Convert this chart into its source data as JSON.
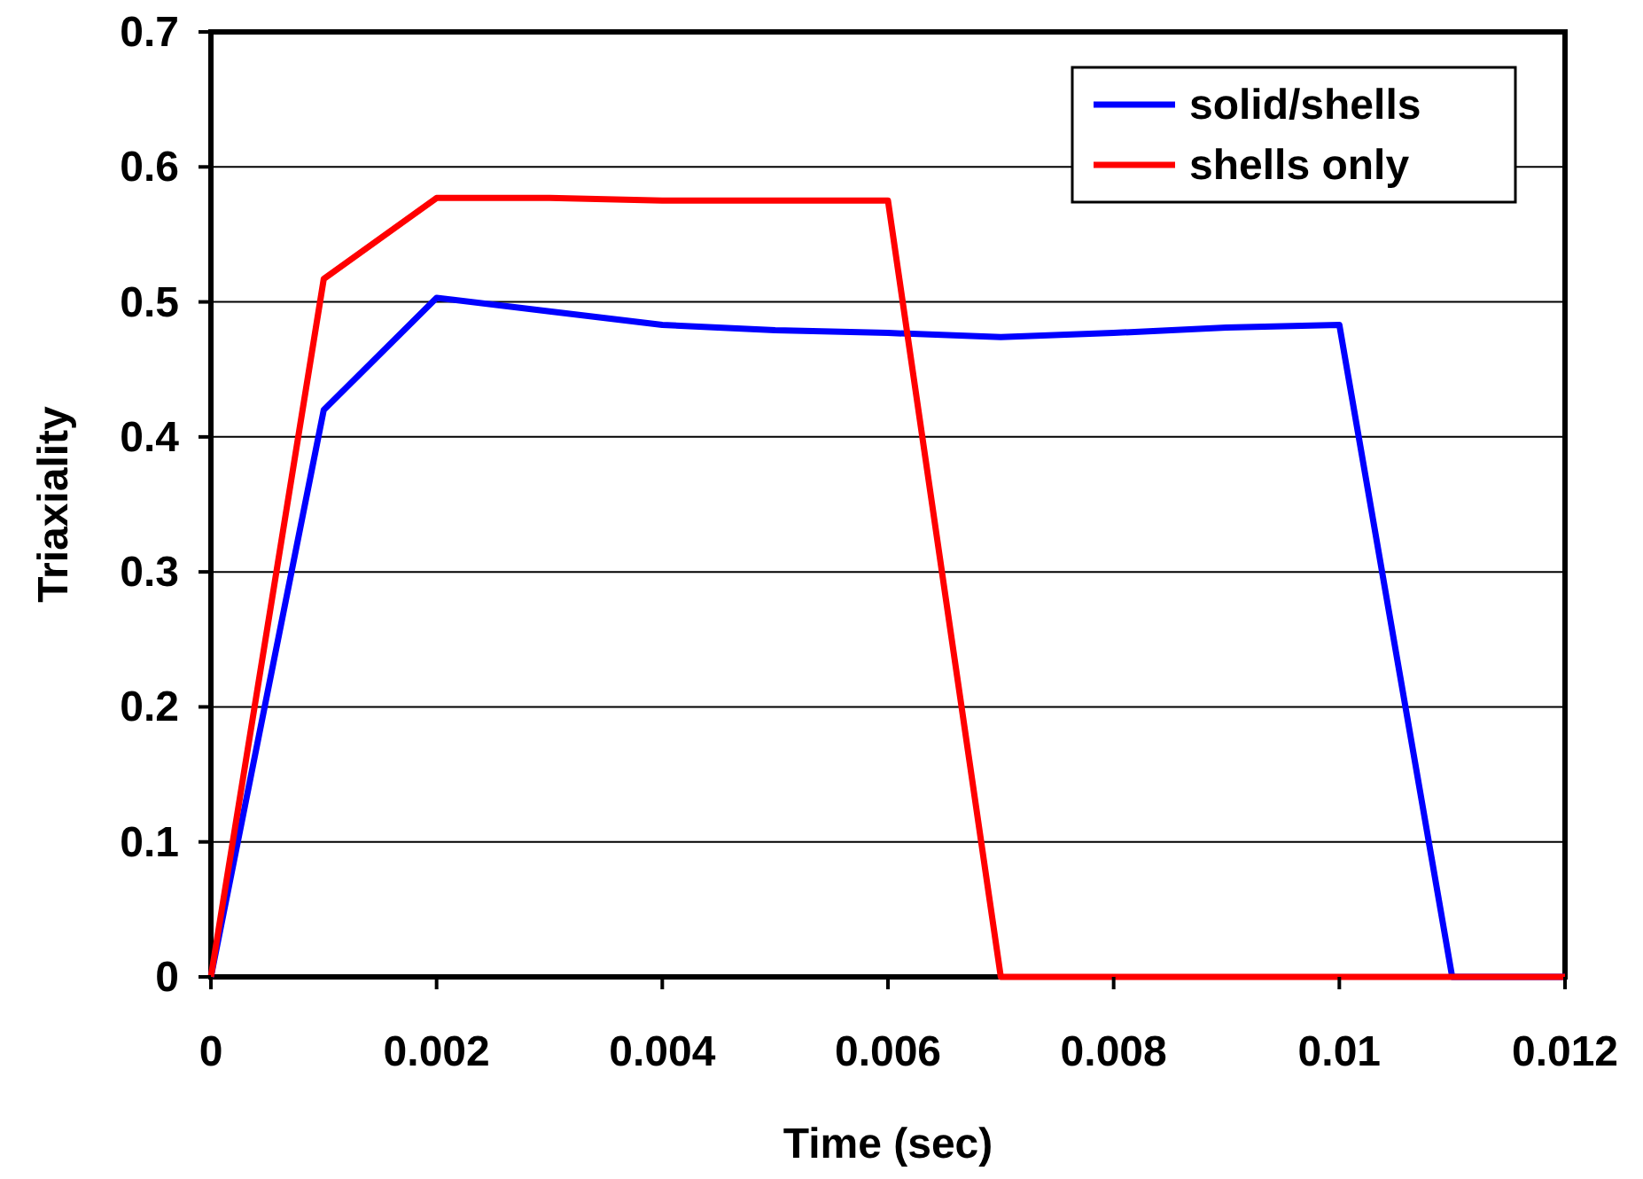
{
  "chart_data": {
    "type": "line",
    "xlabel": "Time (sec)",
    "ylabel": "Triaxiality",
    "x": [
      0,
      0.001,
      0.002,
      0.003,
      0.004,
      0.005,
      0.006,
      0.007,
      0.008,
      0.009,
      0.01,
      0.011,
      0.012
    ],
    "series": [
      {
        "name": "solid/shells",
        "color": "#0000ff",
        "values": [
          0,
          0.42,
          0.503,
          0.493,
          0.483,
          0.479,
          0.477,
          0.474,
          0.477,
          0.481,
          0.483,
          0,
          0
        ]
      },
      {
        "name": "shells only",
        "color": "#ff0000",
        "values": [
          0,
          0.517,
          0.577,
          0.577,
          0.575,
          0.575,
          0.575,
          0,
          0,
          0,
          0,
          0,
          0
        ]
      }
    ],
    "xlim": [
      0,
      0.012
    ],
    "xticks": [
      0,
      0.002,
      0.004,
      0.006,
      0.008,
      0.01,
      0.012
    ],
    "ylim": [
      0,
      0.7
    ],
    "yticks": [
      0,
      0.1,
      0.2,
      0.3,
      0.4,
      0.5,
      0.6,
      0.7
    ],
    "grid": "y",
    "legend": "top right",
    "marker": "none",
    "line_style": "solid"
  }
}
